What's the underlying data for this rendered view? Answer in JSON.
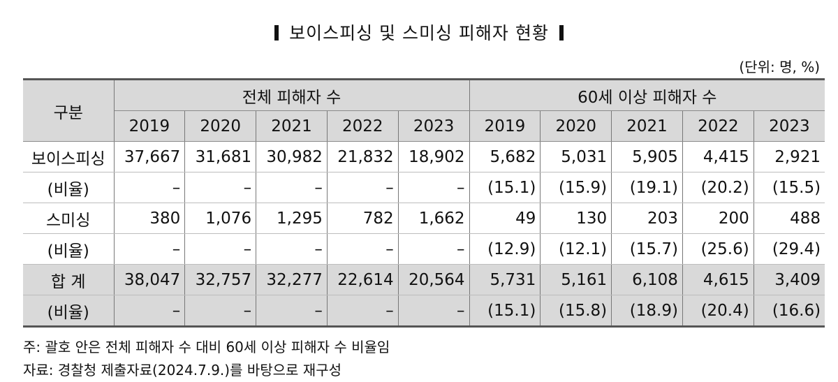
{
  "title": "보이스피싱 및 스미싱 피해자 현황",
  "unit": "(단위: 명, %)",
  "table": {
    "header_category": "구분",
    "group_headers": [
      "전체 피해자 수",
      "60세 이상 피해자 수"
    ],
    "years": [
      "2019",
      "2020",
      "2021",
      "2022",
      "2023",
      "2019",
      "2020",
      "2021",
      "2022",
      "2023"
    ],
    "rows": [
      {
        "label": "보이스피싱",
        "shaded": false,
        "values": [
          "37,667",
          "31,681",
          "30,982",
          "21,832",
          "18,902",
          "5,682",
          "5,031",
          "5,905",
          "4,415",
          "2,921"
        ]
      },
      {
        "label": "(비율)",
        "shaded": false,
        "values": [
          "–",
          "–",
          "–",
          "–",
          "–",
          "(15.1)",
          "(15.9)",
          "(19.1)",
          "(20.2)",
          "(15.5)"
        ]
      },
      {
        "label": "스미싱",
        "shaded": false,
        "values": [
          "380",
          "1,076",
          "1,295",
          "782",
          "1,662",
          "49",
          "130",
          "203",
          "200",
          "488"
        ]
      },
      {
        "label": "(비율)",
        "shaded": false,
        "values": [
          "–",
          "–",
          "–",
          "–",
          "–",
          "(12.9)",
          "(12.1)",
          "(15.7)",
          "(25.6)",
          "(29.4)"
        ]
      },
      {
        "label": "합 계",
        "shaded": true,
        "values": [
          "38,047",
          "32,757",
          "32,277",
          "22,614",
          "20,564",
          "5,731",
          "5,161",
          "6,108",
          "4,615",
          "3,409"
        ]
      },
      {
        "label": "(비율)",
        "shaded": true,
        "values": [
          "–",
          "–",
          "–",
          "–",
          "–",
          "(15.1)",
          "(15.8)",
          "(18.9)",
          "(20.4)",
          "(16.6)"
        ]
      }
    ]
  },
  "notes": [
    "주: 괄호 안은 전체 피해자 수 대비 60세 이상 피해자 수 비율임",
    "자료: 경찰청 제출자료(2024.7.9.)를 바탕으로 재구성"
  ]
}
